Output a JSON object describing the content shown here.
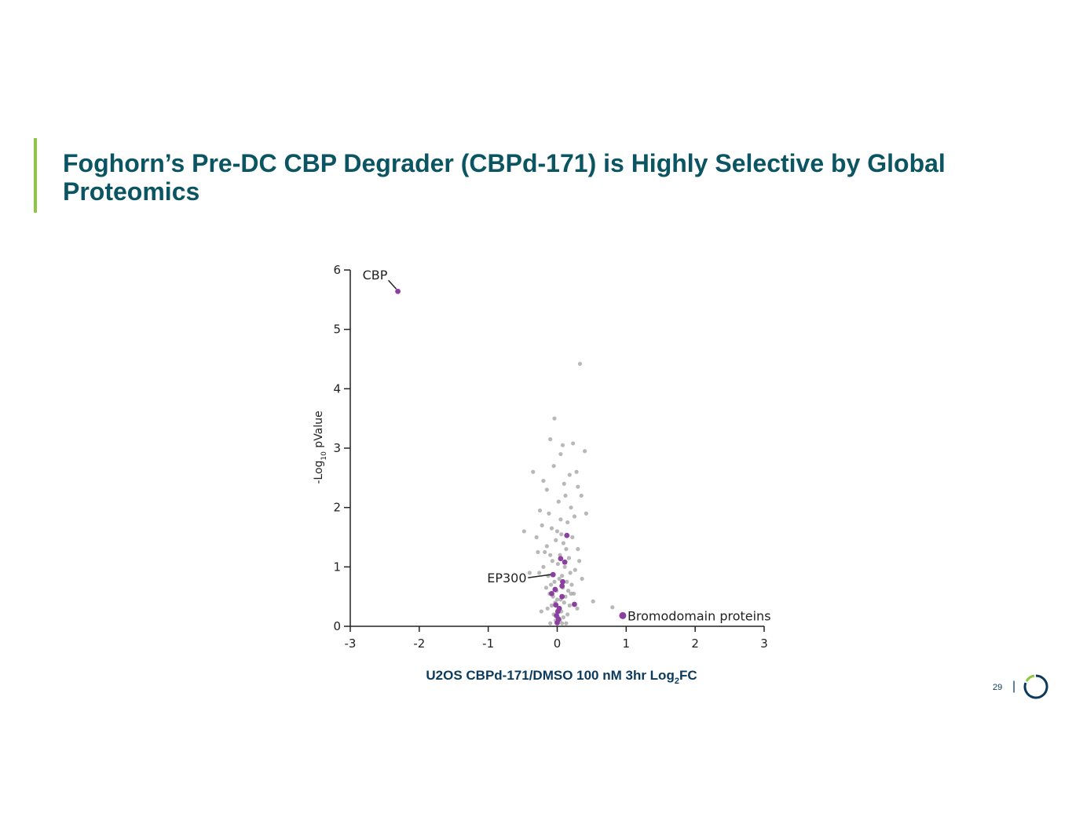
{
  "title": "Foghorn’s Pre-DC CBP Degrader (CBPd-171) is Highly Selective by Global Proteomics",
  "page_number": "29",
  "chart_data": {
    "type": "scatter",
    "xlabel": [
      "U2OS CBPd-171/DMSO 100 nM 3hr Log",
      "2",
      "FC"
    ],
    "ylabel": [
      "-Log",
      "10",
      " pValue"
    ],
    "xlim": [
      -3,
      3
    ],
    "xticks": [
      -3,
      -2,
      -1,
      0,
      1,
      2,
      3
    ],
    "ylim": [
      0,
      6
    ],
    "yticks": [
      0,
      1,
      2,
      3,
      4,
      5,
      6
    ],
    "series": [
      {
        "color": "#a6a6a6",
        "x": [
          0.33,
          -0.04,
          -0.1,
          0.08,
          0.23,
          0.4,
          0.05,
          0.52,
          0.8,
          -0.48,
          -0.35,
          -0.2,
          -0.15,
          0.3,
          0.35,
          0.28,
          -0.25,
          0.18,
          0.1,
          -0.05,
          0.02,
          0.12,
          -0.12,
          0.2,
          0.25,
          -0.3,
          -0.22,
          0.15,
          0.05,
          -0.08,
          0.0,
          0.06,
          -0.02,
          0.09,
          -0.15,
          0.22,
          0.3,
          -0.18,
          0.13,
          -0.1,
          0.04,
          0.17,
          -0.07,
          0.01,
          0.11,
          -0.2,
          0.26,
          -0.26,
          0.19,
          -0.13,
          0.07,
          0.03,
          -0.04,
          0.14,
          -0.09,
          0.21,
          -0.16,
          0.08,
          -0.01,
          0.16,
          -0.11,
          0.24,
          -0.06,
          0.12,
          0.0,
          0.05,
          -0.03,
          0.1,
          -0.08,
          0.18,
          0.02,
          -0.14,
          0.29,
          -0.23,
          0.06,
          0.15,
          -0.05,
          0.09,
          0.01,
          -0.02,
          0.04,
          0.07,
          -0.1,
          0.13,
          0.32,
          -0.28,
          0.36,
          0.42,
          -0.4,
          0.2
        ],
        "y": [
          4.42,
          3.5,
          3.15,
          3.05,
          3.08,
          2.95,
          2.9,
          0.42,
          0.32,
          1.6,
          2.6,
          2.45,
          2.3,
          2.35,
          2.2,
          2.6,
          1.95,
          2.55,
          2.4,
          2.7,
          2.1,
          2.2,
          1.9,
          2.0,
          1.85,
          1.5,
          1.7,
          1.75,
          1.8,
          1.65,
          1.6,
          1.55,
          1.45,
          1.4,
          1.35,
          1.5,
          1.3,
          1.25,
          1.3,
          1.2,
          1.2,
          1.15,
          1.1,
          1.05,
          1.0,
          1.0,
          0.95,
          0.9,
          0.9,
          0.85,
          0.85,
          0.8,
          0.75,
          0.75,
          0.7,
          0.7,
          0.65,
          0.65,
          0.6,
          0.6,
          0.55,
          0.55,
          0.5,
          0.5,
          0.45,
          0.45,
          0.4,
          0.4,
          0.35,
          0.35,
          0.3,
          0.3,
          0.3,
          0.25,
          0.25,
          0.2,
          0.2,
          0.15,
          0.15,
          0.1,
          0.1,
          0.05,
          0.05,
          0.05,
          1.1,
          1.25,
          0.8,
          1.9,
          0.9,
          0.55
        ]
      },
      {
        "color": "#8b3fa0",
        "x": [
          -2.31,
          0.14,
          0.05,
          0.11,
          -0.06,
          0.08,
          0.07,
          -0.03,
          -0.08,
          0.07,
          0.25,
          -0.02,
          0.03,
          0.01,
          -0.01,
          0.02,
          0.0,
          0.95
        ],
        "y": [
          5.64,
          1.53,
          1.14,
          1.08,
          0.87,
          0.75,
          0.68,
          0.62,
          0.55,
          0.5,
          0.37,
          0.36,
          0.3,
          0.25,
          0.18,
          0.12,
          0.06,
          0.18
        ]
      }
    ],
    "annotations": [
      "CBP",
      "EP300",
      "Bromodomain proteins"
    ]
  }
}
